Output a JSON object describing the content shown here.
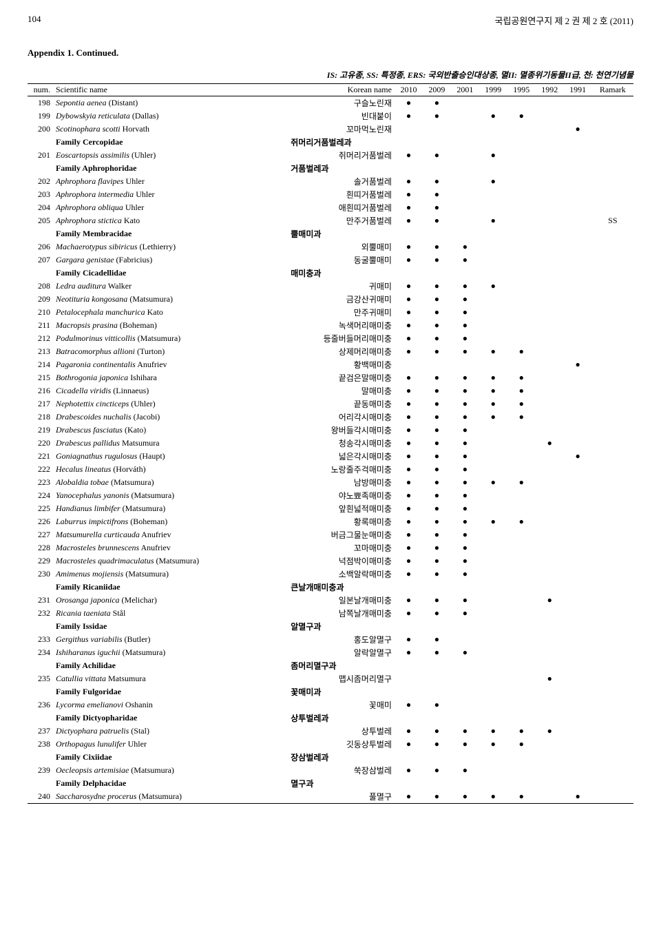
{
  "header": {
    "page_number": "104",
    "journal_title": "국립공원연구지 제 2 권 제 2 호 (2011)"
  },
  "appendix": {
    "title": "Appendix 1. Continued."
  },
  "legend": "IS: 고유종, SS: 특정종, ERS: 국외반출승인대상종, 멸II: 멸종위기동물II급, 천: 천연기념물",
  "columns": {
    "num": "num.",
    "sci": "Scientific name",
    "kor": "Korean name",
    "y2010": "2010",
    "y2009": "2009",
    "y2001": "2001",
    "y1999": "1999",
    "y1995": "1995",
    "y1992": "1992",
    "y1991": "1991",
    "remark": "Ramark"
  },
  "dot_glyph": "●",
  "rows": [
    {
      "n": "198",
      "sci": "Sepontia aenea",
      "auth": "(Distant)",
      "kor": "구슬노린재",
      "d": [
        1,
        1,
        0,
        0,
        0,
        0,
        0
      ],
      "r": ""
    },
    {
      "n": "199",
      "sci": "Dybowskyia reticulata",
      "auth": "(Dallas)",
      "kor": "빈대붙이",
      "d": [
        1,
        1,
        0,
        1,
        1,
        0,
        0
      ],
      "r": ""
    },
    {
      "n": "200",
      "sci": "Scotinophara scotti",
      "auth": "Horvath",
      "kor": "꼬마먹노린재",
      "d": [
        0,
        0,
        0,
        0,
        0,
        0,
        1
      ],
      "r": ""
    },
    {
      "family": true,
      "sci": "Family Cercopidae",
      "kor": "쥐머리거품벌레과"
    },
    {
      "n": "201",
      "sci": "Eoscartopsis assimilis",
      "auth": "(Uhler)",
      "kor": "쥐머리거품벌레",
      "d": [
        1,
        1,
        0,
        1,
        0,
        0,
        0
      ],
      "r": ""
    },
    {
      "family": true,
      "sci": "Family Aphrophoridae",
      "kor": "거품벌레과"
    },
    {
      "n": "202",
      "sci": "Aphrophora flavipes",
      "auth": "Uhler",
      "kor": "솔거품벌레",
      "d": [
        1,
        1,
        0,
        1,
        0,
        0,
        0
      ],
      "r": ""
    },
    {
      "n": "203",
      "sci": "Aphrophora intermedia",
      "auth": "Uhler",
      "kor": "흰띠거품벌레",
      "d": [
        1,
        1,
        0,
        0,
        0,
        0,
        0
      ],
      "r": ""
    },
    {
      "n": "204",
      "sci": "Aphrophora obliqua",
      "auth": "Uhler",
      "kor": "애흰띠거품벌레",
      "d": [
        1,
        1,
        0,
        0,
        0,
        0,
        0
      ],
      "r": ""
    },
    {
      "n": "205",
      "sci": "Aphrophora stictica",
      "auth": "Kato",
      "kor": "만주거품벌레",
      "d": [
        1,
        1,
        0,
        1,
        0,
        0,
        0
      ],
      "r": "SS"
    },
    {
      "family": true,
      "sci": "Family Membracidae",
      "kor": "뿔매미과"
    },
    {
      "n": "206",
      "sci": "Machaerotypus sibiricus",
      "auth": "(Lethierry)",
      "kor": "외뿔매미",
      "d": [
        1,
        1,
        1,
        0,
        0,
        0,
        0
      ],
      "r": ""
    },
    {
      "n": "207",
      "sci": "Gargara genistae",
      "auth": "(Fabricius)",
      "kor": "동굴뿔매미",
      "d": [
        1,
        1,
        1,
        0,
        0,
        0,
        0
      ],
      "r": ""
    },
    {
      "family": true,
      "sci": "Family Cicadellidae",
      "kor": "매미충과"
    },
    {
      "n": "208",
      "sci": "Ledra auditura",
      "auth": "Walker",
      "kor": "귀매미",
      "d": [
        1,
        1,
        1,
        1,
        0,
        0,
        0
      ],
      "r": ""
    },
    {
      "n": "209",
      "sci": "Neotituria kongosana",
      "auth": "(Matsumura)",
      "kor": "금강산귀매미",
      "d": [
        1,
        1,
        1,
        0,
        0,
        0,
        0
      ],
      "r": ""
    },
    {
      "n": "210",
      "sci": "Petalocephala manchurica",
      "auth": "Kato",
      "kor": "만주귀매미",
      "d": [
        1,
        1,
        1,
        0,
        0,
        0,
        0
      ],
      "r": ""
    },
    {
      "n": "211",
      "sci": "Macropsis prasina",
      "auth": "(Boheman)",
      "kor": "녹색머리매미충",
      "d": [
        1,
        1,
        1,
        0,
        0,
        0,
        0
      ],
      "r": ""
    },
    {
      "n": "212",
      "sci": "Podulmorinus vitticollis",
      "auth": "(Matsumura)",
      "kor": "등줄버들머리매미충",
      "d": [
        1,
        1,
        1,
        0,
        0,
        0,
        0
      ],
      "r": ""
    },
    {
      "n": "213",
      "sci": "Batracomorphus allioni",
      "auth": "(Turton)",
      "kor": "상제머리매미충",
      "d": [
        1,
        1,
        1,
        1,
        1,
        0,
        0
      ],
      "r": ""
    },
    {
      "n": "214",
      "sci": "Pagaronia continentalis",
      "auth": "Anufriev",
      "kor": "황백매미충",
      "d": [
        0,
        0,
        0,
        0,
        0,
        0,
        1
      ],
      "r": ""
    },
    {
      "n": "215",
      "sci": "Bothrogonia japonica",
      "auth": "Ishihara",
      "kor": "끝검은말매미충",
      "d": [
        1,
        1,
        1,
        1,
        1,
        0,
        0
      ],
      "r": ""
    },
    {
      "n": "216",
      "sci": "Cicadella viridis",
      "auth": "(Linnaeus)",
      "kor": "말매미충",
      "d": [
        1,
        1,
        1,
        1,
        1,
        0,
        0
      ],
      "r": ""
    },
    {
      "n": "217",
      "sci": "Nephotettix cincticeps",
      "auth": "(Uhler)",
      "kor": "끝동매미충",
      "d": [
        1,
        1,
        1,
        1,
        1,
        0,
        0
      ],
      "r": ""
    },
    {
      "n": "218",
      "sci": "Drabescoides nuchalis",
      "auth": "(Jacobi)",
      "kor": "어리각시매미충",
      "d": [
        1,
        1,
        1,
        1,
        1,
        0,
        0
      ],
      "r": ""
    },
    {
      "n": "219",
      "sci": "Drabescus fasciatus",
      "auth": "(Kato)",
      "kor": "왕버들각시매미충",
      "d": [
        1,
        1,
        1,
        0,
        0,
        0,
        0
      ],
      "r": ""
    },
    {
      "n": "220",
      "sci": "Drabescus pallidus",
      "auth": "Matsumura",
      "kor": "청송각시매미충",
      "d": [
        1,
        1,
        1,
        0,
        0,
        1,
        0
      ],
      "r": ""
    },
    {
      "n": "221",
      "sci": "Goniagnathus rugulosus",
      "auth": "(Haupt)",
      "kor": "넓은각시매미충",
      "d": [
        1,
        1,
        1,
        0,
        0,
        0,
        1
      ],
      "r": ""
    },
    {
      "n": "222",
      "sci": "Hecalus lineatus",
      "auth": "(Horváth)",
      "kor": "노랑줄주걱매미충",
      "d": [
        1,
        1,
        1,
        0,
        0,
        0,
        0
      ],
      "r": ""
    },
    {
      "n": "223",
      "sci": "Alobaldia tobae",
      "auth": "(Matsumura)",
      "kor": "남방매미충",
      "d": [
        1,
        1,
        1,
        1,
        1,
        0,
        0
      ],
      "r": ""
    },
    {
      "n": "224",
      "sci": "Yanocephalus yanonis",
      "auth": "(Matsumura)",
      "kor": "야노뾰족매미충",
      "d": [
        1,
        1,
        1,
        0,
        0,
        0,
        0
      ],
      "r": ""
    },
    {
      "n": "225",
      "sci": "Handianus limbifer",
      "auth": "(Matsumura)",
      "kor": "앞흰넓적매미충",
      "d": [
        1,
        1,
        1,
        0,
        0,
        0,
        0
      ],
      "r": ""
    },
    {
      "n": "226",
      "sci": "Laburrus impictifrons",
      "auth": "(Boheman)",
      "kor": "황록매미충",
      "d": [
        1,
        1,
        1,
        1,
        1,
        0,
        0
      ],
      "r": ""
    },
    {
      "n": "227",
      "sci": "Matsumurella curticauda",
      "auth": "Anufriev",
      "kor": "버금그물눈매미충",
      "d": [
        1,
        1,
        1,
        0,
        0,
        0,
        0
      ],
      "r": ""
    },
    {
      "n": "228",
      "sci": "Macrosteles brunnescens",
      "auth": "Anufriev",
      "kor": "꼬마매미충",
      "d": [
        1,
        1,
        1,
        0,
        0,
        0,
        0
      ],
      "r": ""
    },
    {
      "n": "229",
      "sci": "Macrosteles quadrimaculatus",
      "auth": "(Matsumura)",
      "kor": "넉점박이매미충",
      "d": [
        1,
        1,
        1,
        0,
        0,
        0,
        0
      ],
      "r": ""
    },
    {
      "n": "230",
      "sci": "Amimenus mojiensis",
      "auth": "(Matsumura)",
      "kor": "소백알락매미충",
      "d": [
        1,
        1,
        1,
        0,
        0,
        0,
        0
      ],
      "r": ""
    },
    {
      "family": true,
      "sci": "Family Ricaniidae",
      "kor": "큰날개매미충과"
    },
    {
      "n": "231",
      "sci": "Orosanga japonica",
      "auth": "(Melichar)",
      "kor": "일본날개매미충",
      "d": [
        1,
        1,
        1,
        0,
        0,
        1,
        0
      ],
      "r": ""
    },
    {
      "n": "232",
      "sci": "Ricania taeniata",
      "auth": "Stål",
      "kor": "남쪽날개매미충",
      "d": [
        1,
        1,
        1,
        0,
        0,
        0,
        0
      ],
      "r": ""
    },
    {
      "family": true,
      "sci": "Family Issidae",
      "kor": "알멸구과"
    },
    {
      "n": "233",
      "sci": "Gergithus variabilis",
      "auth": "(Butler)",
      "kor": "홍도알멸구",
      "d": [
        1,
        1,
        0,
        0,
        0,
        0,
        0
      ],
      "r": ""
    },
    {
      "n": "234",
      "sci": "Ishiharanus iguchii",
      "auth": "(Matsumura)",
      "kor": "알락알멸구",
      "d": [
        1,
        1,
        1,
        0,
        0,
        0,
        0
      ],
      "r": ""
    },
    {
      "family": true,
      "sci": "Family Achilidae",
      "kor": "좀머리멸구과"
    },
    {
      "n": "235",
      "sci": "Catullia vittata",
      "auth": "Matsumura",
      "kor": "맵시좀머리멸구",
      "d": [
        0,
        0,
        0,
        0,
        0,
        1,
        0
      ],
      "r": ""
    },
    {
      "family": true,
      "sci": "Family Fulgoridae",
      "kor": "꽃매미과"
    },
    {
      "n": "236",
      "sci": "Lycorma emelianovi",
      "auth": "Oshanin",
      "kor": "꽃매미",
      "d": [
        1,
        1,
        0,
        0,
        0,
        0,
        0
      ],
      "r": ""
    },
    {
      "family": true,
      "sci": "Family Dictyopharidae",
      "kor": "상투벌레과"
    },
    {
      "n": "237",
      "sci": "Dictyophara patruelis",
      "auth": "(Stal)",
      "kor": "상투벌레",
      "d": [
        1,
        1,
        1,
        1,
        1,
        1,
        0
      ],
      "r": ""
    },
    {
      "n": "238",
      "sci": "Orthopagus lunulifer",
      "auth": "Uhler",
      "kor": "깃동상투벌레",
      "d": [
        1,
        1,
        1,
        1,
        1,
        0,
        0
      ],
      "r": ""
    },
    {
      "family": true,
      "sci": "Family Cixiidae",
      "kor": "장삼벌레과"
    },
    {
      "n": "239",
      "sci": "Oecleopsis artemisiae",
      "auth": "(Matsumura)",
      "kor": "쑥장삼벌레",
      "d": [
        1,
        1,
        1,
        0,
        0,
        0,
        0
      ],
      "r": ""
    },
    {
      "family": true,
      "sci": "Family Delphacidae",
      "kor": "멸구과"
    },
    {
      "n": "240",
      "sci": "Saccharosydne procerus",
      "auth": "(Matsumura)",
      "kor": "풀멸구",
      "d": [
        1,
        1,
        1,
        1,
        1,
        0,
        1
      ],
      "r": ""
    }
  ]
}
